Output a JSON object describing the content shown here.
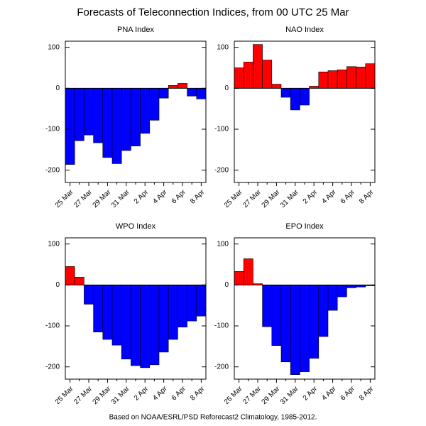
{
  "title": "Forecasts of Teleconnection Indices, from 00 UTC 25 Mar",
  "footnote": "Based on NOAA/ESRL/PSD Reforecast2 Climatology, 1985-2012.",
  "chart_data": [
    {
      "type": "bar",
      "title": "PNA Index",
      "categories": [
        "25 Mar",
        null,
        "27 Mar",
        null,
        "29 Mar",
        null,
        "31 Mar",
        null,
        "2 Apr",
        null,
        "4 Apr",
        null,
        "6 Apr",
        null,
        "8 Apr"
      ],
      "values": [
        -186,
        -128,
        -114,
        -133,
        -169,
        -184,
        -152,
        -141,
        -110,
        -78,
        -24,
        7,
        12,
        -19,
        -26
      ],
      "positive_color": "#ff0000",
      "negative_color": "#0000ff",
      "ylim": [
        -230,
        115
      ],
      "yticks": [
        100,
        0,
        -100,
        -200
      ]
    },
    {
      "type": "bar",
      "title": "NAO Index",
      "categories": [
        "25 Mar",
        null,
        "27 Mar",
        null,
        "29 Mar",
        null,
        "31 Mar",
        null,
        "2 Apr",
        null,
        "4 Apr",
        null,
        "6 Apr",
        null,
        "8 Apr"
      ],
      "values": [
        50,
        64,
        107,
        69,
        10,
        -22,
        -53,
        -41,
        5,
        40,
        43,
        45,
        53,
        52,
        60
      ],
      "positive_color": "#ff0000",
      "negative_color": "#0000ff",
      "ylim": [
        -230,
        115
      ],
      "yticks": [
        100,
        0,
        -100,
        -200
      ]
    },
    {
      "type": "bar",
      "title": "WPO Index",
      "categories": [
        "25 Mar",
        null,
        "27 Mar",
        null,
        "29 Mar",
        null,
        "31 Mar",
        null,
        "2 Apr",
        null,
        "4 Apr",
        null,
        "6 Apr",
        null,
        "8 Apr"
      ],
      "values": [
        45,
        19,
        -47,
        -115,
        -133,
        -147,
        -181,
        -197,
        -202,
        -195,
        -164,
        -133,
        -103,
        -88,
        -76
      ],
      "positive_color": "#ff0000",
      "negative_color": "#0000ff",
      "ylim": [
        -230,
        115
      ],
      "yticks": [
        100,
        0,
        -100,
        -200
      ]
    },
    {
      "type": "bar",
      "title": "EPO Index",
      "categories": [
        "25 Mar",
        null,
        "27 Mar",
        null,
        "29 Mar",
        null,
        "31 Mar",
        null,
        "2 Apr",
        null,
        "4 Apr",
        null,
        "6 Apr",
        null,
        "8 Apr"
      ],
      "values": [
        33,
        64,
        3,
        -102,
        -148,
        -188,
        -219,
        -212,
        -179,
        -126,
        -62,
        -29,
        -7,
        -5,
        -2
      ],
      "positive_color": "#ff0000",
      "negative_color": "#0000ff",
      "ylim": [
        -230,
        115
      ],
      "yticks": [
        100,
        0,
        -100,
        -200
      ]
    }
  ]
}
